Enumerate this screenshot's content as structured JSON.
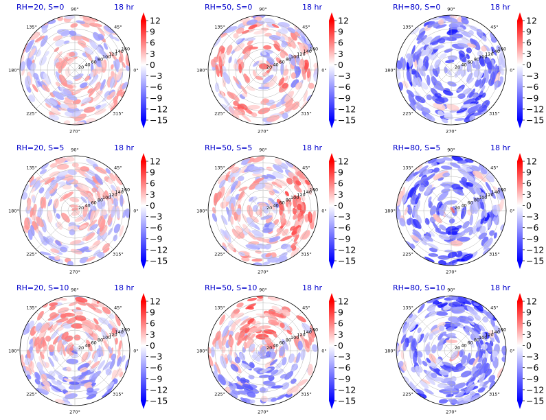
{
  "figure": {
    "time_label": "18 hr",
    "angle_ticks": [
      "0°",
      "45°",
      "90°",
      "135°",
      "180°",
      "225°",
      "270°",
      "315°"
    ],
    "radial_ticks": [
      "20",
      "40",
      "60",
      "80",
      "100",
      "120",
      "140",
      "160"
    ],
    "colorbar_ticks": [
      "12",
      "9",
      "6",
      "3",
      "0",
      "−3",
      "−6",
      "−9",
      "−12",
      "−15"
    ],
    "colors": {
      "title": "#0000cc",
      "positive": "#ff0000",
      "negative": "#0000ff",
      "zero": "#ffffff"
    }
  },
  "chart_data": [
    {
      "type": "heatmap",
      "projection": "polar",
      "title": "RH=20, S=0",
      "time": "18 hr",
      "colorbar_range": [
        -15,
        12
      ],
      "r_range": [
        0,
        160
      ],
      "pattern": "weak-scattered"
    },
    {
      "type": "heatmap",
      "projection": "polar",
      "title": "RH=50, S=0",
      "time": "18 hr",
      "colorbar_range": [
        -15,
        12
      ],
      "r_range": [
        0,
        160
      ],
      "pattern": "rings-red"
    },
    {
      "type": "heatmap",
      "projection": "polar",
      "title": "RH=80, S=0",
      "time": "18 hr",
      "colorbar_range": [
        -15,
        12
      ],
      "r_range": [
        0,
        160
      ],
      "pattern": "spiral-blue"
    },
    {
      "type": "heatmap",
      "projection": "polar",
      "title": "RH=20, S=5",
      "time": "18 hr",
      "colorbar_range": [
        -15,
        12
      ],
      "r_range": [
        0,
        160
      ],
      "pattern": "weak-scattered"
    },
    {
      "type": "heatmap",
      "projection": "polar",
      "title": "RH=50, S=5",
      "time": "18 hr",
      "colorbar_range": [
        -15,
        12
      ],
      "r_range": [
        0,
        160
      ],
      "pattern": "east-red"
    },
    {
      "type": "heatmap",
      "projection": "polar",
      "title": "RH=80, S=5",
      "time": "18 hr",
      "colorbar_range": [
        -15,
        12
      ],
      "r_range": [
        0,
        160
      ],
      "pattern": "spiral-blue-core"
    },
    {
      "type": "heatmap",
      "projection": "polar",
      "title": "RH=20, S=10",
      "time": "18 hr",
      "colorbar_range": [
        -15,
        12
      ],
      "r_range": [
        0,
        160
      ],
      "pattern": "north-red-south-blue"
    },
    {
      "type": "heatmap",
      "projection": "polar",
      "title": "RH=50, S=10",
      "time": "18 hr",
      "colorbar_range": [
        -15,
        12
      ],
      "r_range": [
        0,
        160
      ],
      "pattern": "north-red-south-blue-strong"
    },
    {
      "type": "heatmap",
      "projection": "polar",
      "title": "RH=80, S=10",
      "time": "18 hr",
      "colorbar_range": [
        -15,
        12
      ],
      "r_range": [
        0,
        160
      ],
      "pattern": "spiral-blue-core"
    }
  ]
}
